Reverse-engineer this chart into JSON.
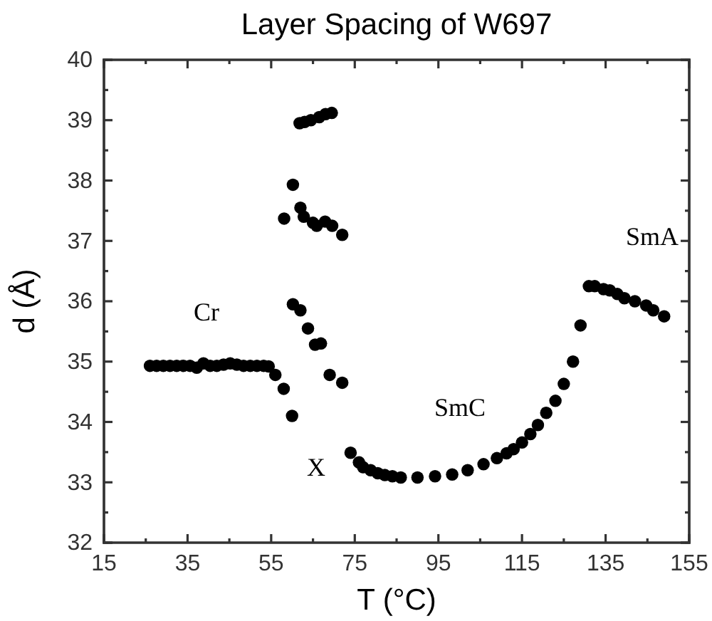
{
  "chart_data": {
    "type": "scatter",
    "title": "Layer Spacing of W697",
    "xlabel": "T (°C)",
    "ylabel": "d (Å)",
    "xlim": [
      15,
      155
    ],
    "xticks": [
      15,
      35,
      55,
      75,
      95,
      115,
      135,
      155
    ],
    "ylim": [
      32,
      40
    ],
    "yticks": [
      32,
      33,
      34,
      35,
      36,
      37,
      38,
      39,
      40
    ],
    "grid": false,
    "marker": "circle",
    "series": [
      {
        "color": "#000000",
        "x": [
          26,
          27.6,
          29.2,
          30.8,
          32.4,
          34,
          35.6,
          37.2,
          38.8,
          40.4,
          42,
          43.6,
          45.2,
          46.8,
          48.4,
          50,
          51.6,
          53.2,
          54.4,
          56,
          58,
          60,
          58.1,
          60.2,
          62,
          62.8,
          65,
          65.9,
          67.9,
          69.6,
          72,
          61.8,
          63,
          64.5,
          66.5,
          68,
          69.5,
          60.2,
          62,
          63.8,
          65.5,
          66.9,
          69,
          72,
          74,
          76,
          77,
          78.8,
          80.5,
          82.2,
          84,
          86,
          90,
          94.2,
          98.3,
          102,
          105.8,
          109,
          111.3,
          113,
          115,
          117,
          118.8,
          120.8,
          123,
          125,
          127.2,
          129,
          131,
          132.4,
          134.5,
          136,
          137.8,
          139.5,
          142,
          144.7,
          146.4,
          149
        ],
        "values": [
          34.93,
          34.93,
          34.93,
          34.93,
          34.93,
          34.93,
          34.93,
          34.9,
          34.97,
          34.93,
          34.93,
          34.95,
          34.97,
          34.95,
          34.93,
          34.93,
          34.93,
          34.93,
          34.92,
          34.78,
          34.55,
          34.1,
          37.37,
          37.93,
          37.55,
          37.4,
          37.3,
          37.25,
          37.32,
          37.25,
          37.1,
          38.95,
          38.97,
          39.0,
          39.05,
          39.1,
          39.12,
          35.95,
          35.85,
          35.55,
          35.28,
          35.3,
          34.78,
          34.65,
          33.49,
          33.33,
          33.25,
          33.2,
          33.15,
          33.12,
          33.1,
          33.08,
          33.08,
          33.1,
          33.13,
          33.2,
          33.3,
          33.4,
          33.48,
          33.55,
          33.66,
          33.8,
          33.95,
          34.15,
          34.35,
          34.63,
          35.0,
          35.6,
          36.25,
          36.25,
          36.2,
          36.18,
          36.12,
          36.05,
          36.0,
          35.93,
          35.85,
          35.75
        ]
      }
    ],
    "annotations": [
      "Cr",
      "X",
      "SmC",
      "SmA"
    ]
  }
}
